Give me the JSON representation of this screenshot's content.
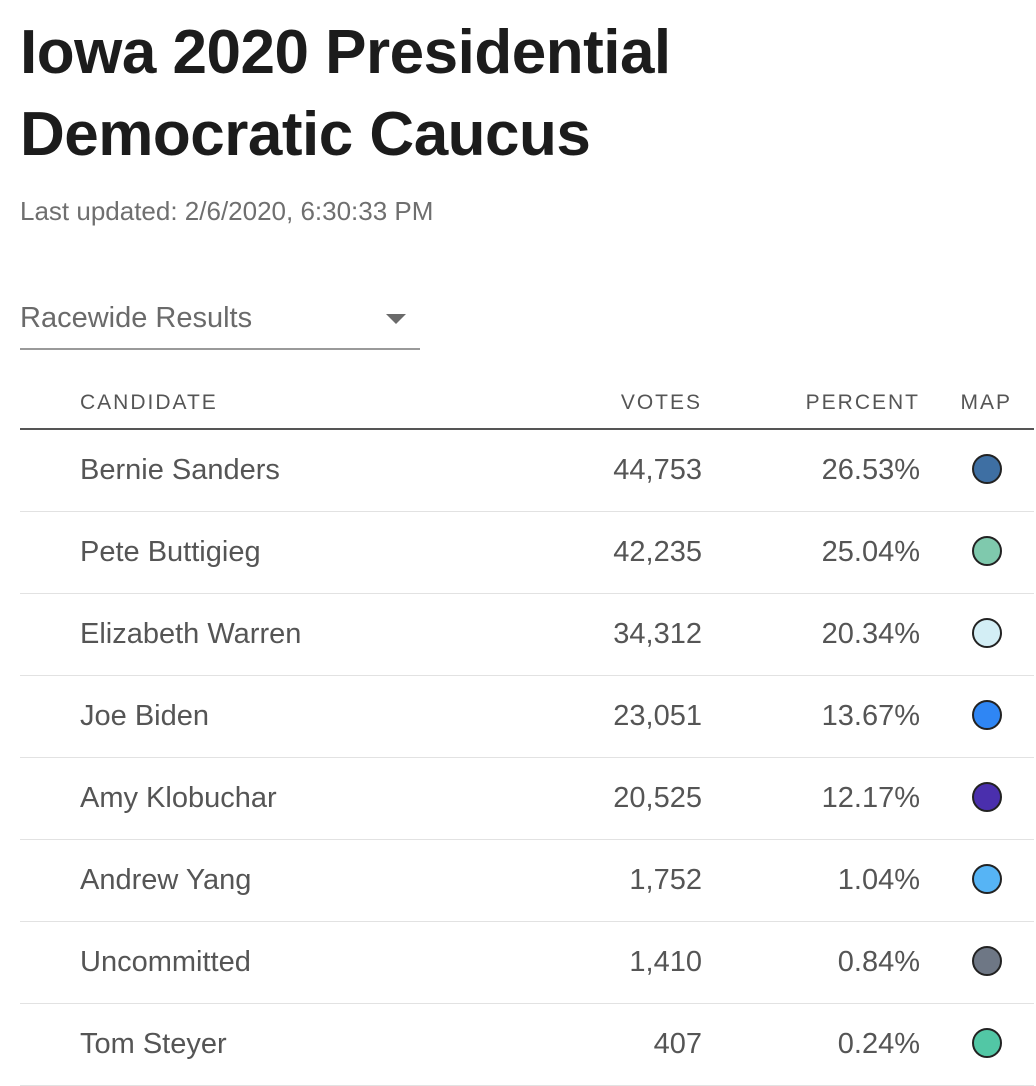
{
  "header": {
    "title": "Iowa 2020 Presidential Democratic Caucus",
    "last_updated": "Last updated: 2/6/2020, 6:30:33 PM"
  },
  "selector": {
    "value": "Racewide Results"
  },
  "table": {
    "columns": {
      "candidate": "CANDIDATE",
      "votes": "VOTES",
      "percent": "PERCENT",
      "map": "MAP"
    },
    "rows": [
      {
        "name": "Bernie Sanders",
        "votes": "44,753",
        "percent": "26.53%",
        "color": "#3e6fa3"
      },
      {
        "name": "Pete Buttigieg",
        "votes": "42,235",
        "percent": "25.04%",
        "color": "#7fc9ad"
      },
      {
        "name": "Elizabeth Warren",
        "votes": "34,312",
        "percent": "20.34%",
        "color": "#d3eef5"
      },
      {
        "name": "Joe Biden",
        "votes": "23,051",
        "percent": "13.67%",
        "color": "#2f86f4"
      },
      {
        "name": "Amy Klobuchar",
        "votes": "20,525",
        "percent": "12.17%",
        "color": "#4a2fad"
      },
      {
        "name": "Andrew Yang",
        "votes": "1,752",
        "percent": "1.04%",
        "color": "#56b4f5"
      },
      {
        "name": "Uncommitted",
        "votes": "1,410",
        "percent": "0.84%",
        "color": "#6e7785"
      },
      {
        "name": "Tom Steyer",
        "votes": "407",
        "percent": "0.24%",
        "color": "#52c7a5"
      }
    ]
  }
}
